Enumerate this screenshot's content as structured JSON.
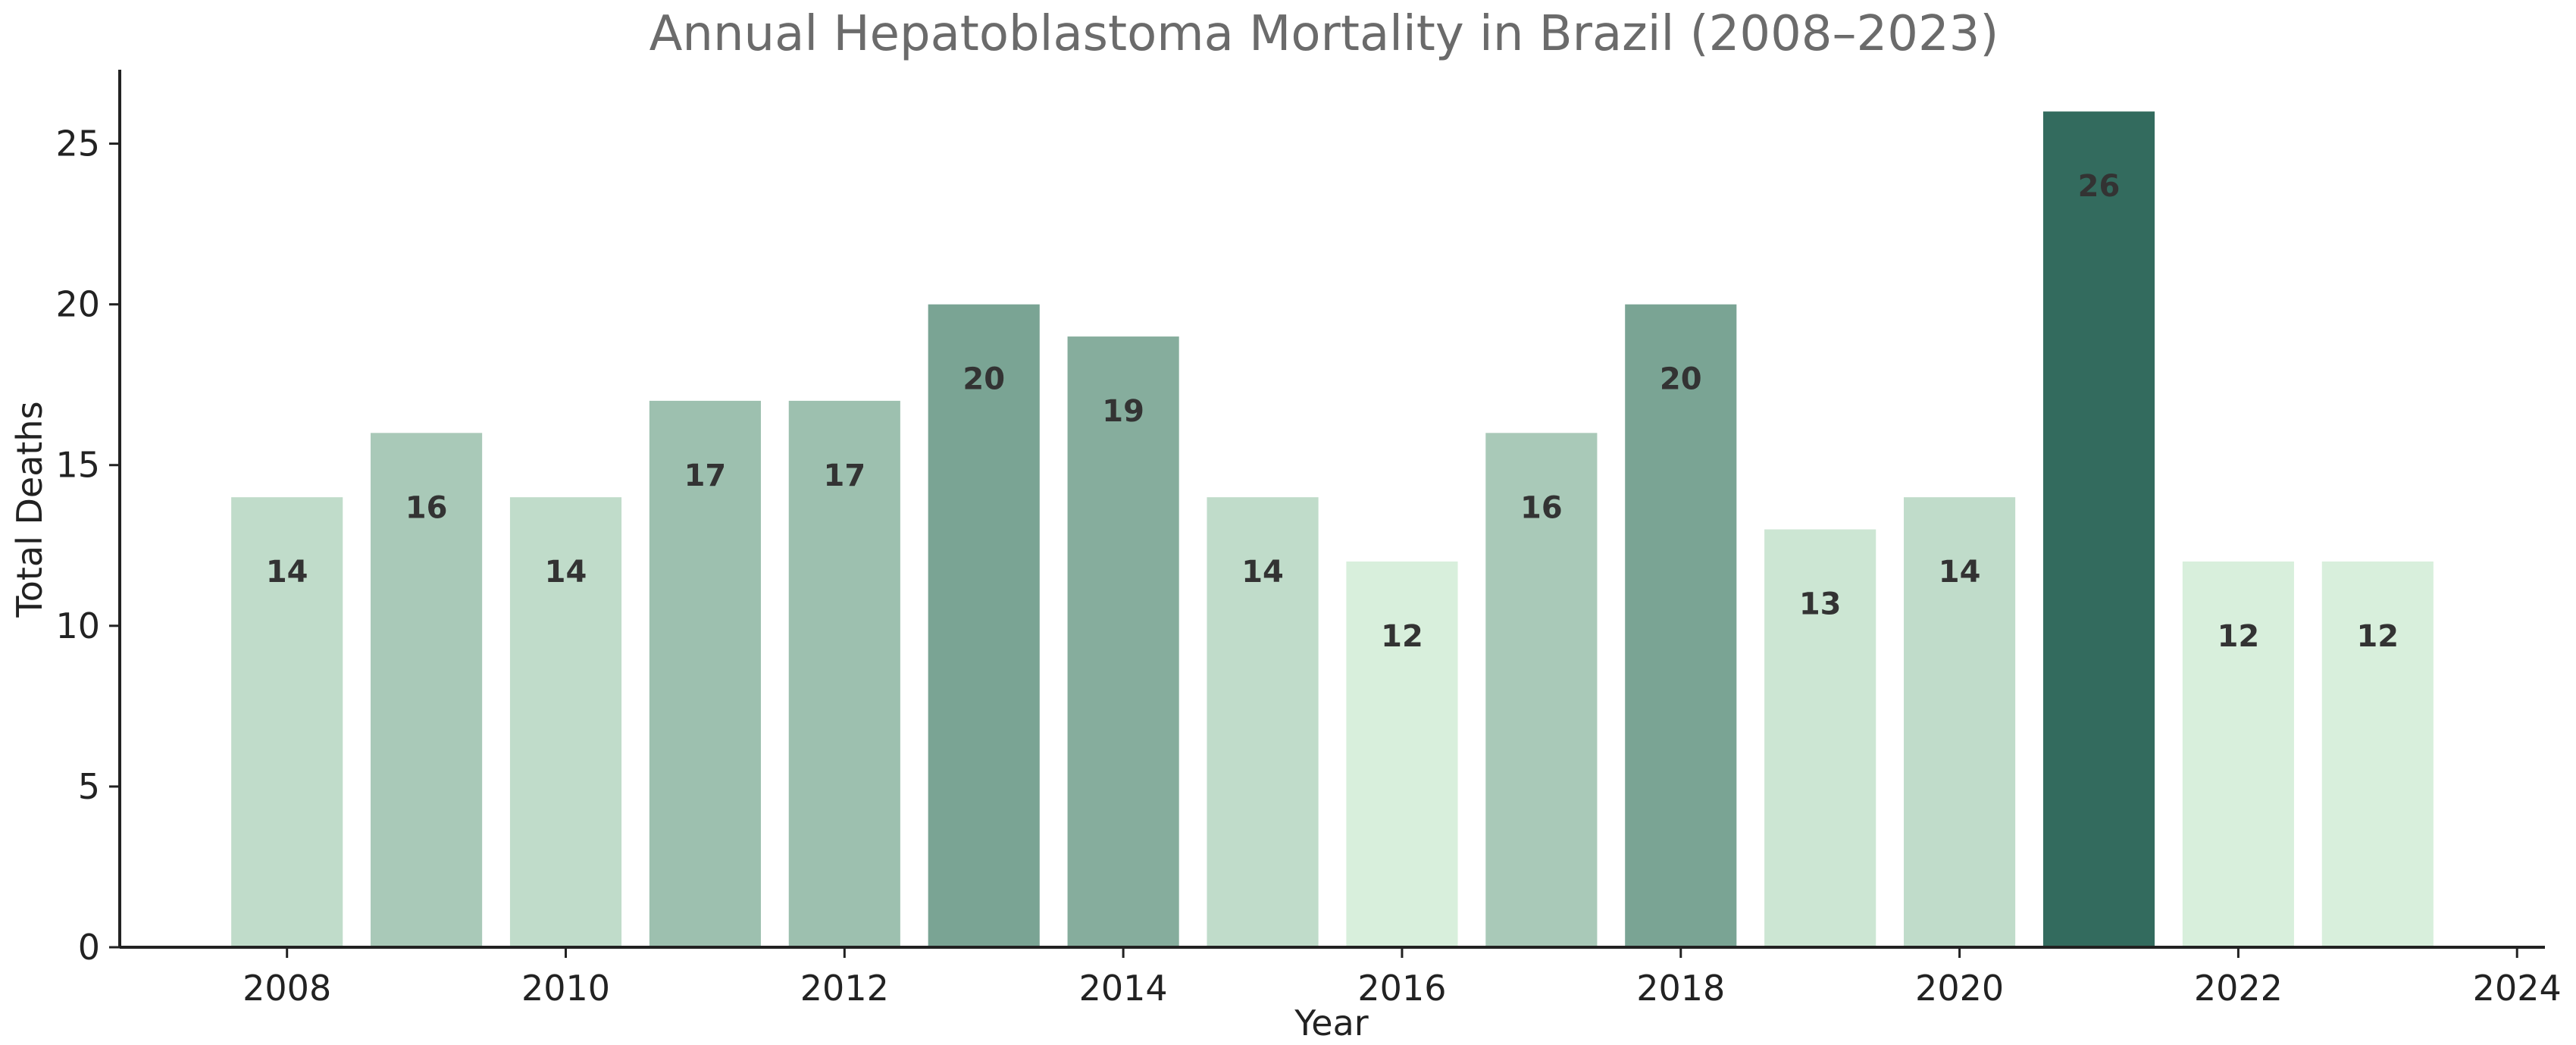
{
  "chart_data": {
    "type": "bar",
    "title": "Annual Hepatoblastoma Mortality in Brazil (2008–2023)",
    "xlabel": "Year",
    "ylabel": "Total Deaths",
    "categories": [
      2008,
      2009,
      2010,
      2011,
      2012,
      2013,
      2014,
      2015,
      2016,
      2017,
      2018,
      2019,
      2020,
      2021,
      2022,
      2023
    ],
    "values": [
      14,
      16,
      14,
      17,
      17,
      20,
      19,
      14,
      12,
      16,
      20,
      13,
      14,
      26,
      12,
      12
    ],
    "xlim": [
      2006.8,
      2024.2
    ],
    "ylim": [
      0,
      27.3
    ],
    "xticks": [
      "2008",
      "2010",
      "2012",
      "2014",
      "2016",
      "2018",
      "2020",
      "2022",
      "2024"
    ],
    "xtick_values": [
      2008,
      2010,
      2012,
      2014,
      2016,
      2018,
      2020,
      2022,
      2024
    ],
    "yticks": [
      "0",
      "5",
      "10",
      "15",
      "20",
      "25"
    ],
    "ytick_values": [
      0,
      5,
      10,
      15,
      20,
      25
    ],
    "grid": false,
    "color_scale": {
      "low": "#d8efdc",
      "high": "#336b5e",
      "min_value": 12,
      "max_value": 26
    }
  }
}
